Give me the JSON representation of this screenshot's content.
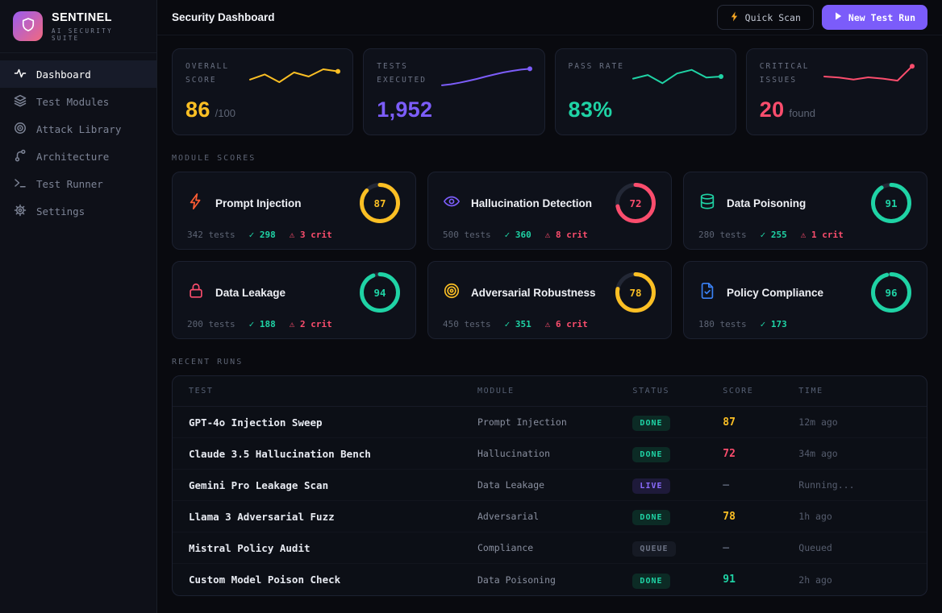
{
  "brand": {
    "name": "SENTINEL",
    "tagline": "AI SECURITY SUITE"
  },
  "sidebar": {
    "items": [
      {
        "label": "Dashboard",
        "active": true
      },
      {
        "label": "Test Modules",
        "active": false
      },
      {
        "label": "Attack Library",
        "active": false
      },
      {
        "label": "Architecture",
        "active": false
      },
      {
        "label": "Test Runner",
        "active": false
      },
      {
        "label": "Settings",
        "active": false
      }
    ]
  },
  "header": {
    "title": "Security Dashboard",
    "quick_scan": "Quick Scan",
    "new_test_run": "New Test Run"
  },
  "stats": [
    {
      "label": "OVERALL SCORE",
      "value": "86",
      "suffix": "/100",
      "color": "#fbbf24",
      "spark": [
        38,
        58,
        28,
        66,
        50,
        78,
        70
      ]
    },
    {
      "label": "TESTS EXECUTED",
      "value": "1,952",
      "suffix": "",
      "color": "#7c5dfa",
      "spark": [
        16,
        20,
        26,
        33,
        41,
        50,
        58,
        66,
        72,
        77,
        80
      ]
    },
    {
      "label": "PASS RATE",
      "value": "83%",
      "suffix": "",
      "color": "#1fd3a5",
      "spark": [
        42,
        56,
        24,
        62,
        76,
        46,
        50
      ]
    },
    {
      "label": "CRITICAL ISSUES",
      "value": "20",
      "suffix": "found",
      "color": "#fb4d6d",
      "spark": [
        50,
        46,
        38,
        47,
        42,
        34,
        90
      ]
    }
  ],
  "sections": {
    "modules": "MODULE SCORES",
    "recent": "RECENT RUNS"
  },
  "modules": [
    {
      "name": "Prompt Injection",
      "score": 87,
      "color": "#fbbf24",
      "icon_color": "#ff5c33",
      "tests": "342 tests",
      "passed": "✓ 298",
      "crit": "⚠ 3 crit"
    },
    {
      "name": "Hallucination Detection",
      "score": 72,
      "color": "#fb4d6d",
      "icon_color": "#7c5dfa",
      "tests": "500 tests",
      "passed": "✓ 360",
      "crit": "⚠ 8 crit"
    },
    {
      "name": "Data Poisoning",
      "score": 91,
      "color": "#1fd3a5",
      "icon_color": "#1fd3a5",
      "tests": "280 tests",
      "passed": "✓ 255",
      "crit": "⚠ 1 crit"
    },
    {
      "name": "Data Leakage",
      "score": 94,
      "color": "#1fd3a5",
      "icon_color": "#fb4d6d",
      "tests": "200 tests",
      "passed": "✓ 188",
      "crit": "⚠ 2 crit"
    },
    {
      "name": "Adversarial Robustness",
      "score": 78,
      "color": "#fbbf24",
      "icon_color": "#fbbf24",
      "tests": "450 tests",
      "passed": "✓ 351",
      "crit": "⚠ 6 crit"
    },
    {
      "name": "Policy Compliance",
      "score": 96,
      "color": "#1fd3a5",
      "icon_color": "#3b82f6",
      "tests": "180 tests",
      "passed": "✓ 173",
      "crit": ""
    }
  ],
  "table": {
    "columns": [
      "TEST",
      "MODULE",
      "STATUS",
      "SCORE",
      "TIME"
    ],
    "rows": [
      {
        "test": "GPT-4o Injection Sweep",
        "module": "Prompt Injection",
        "status": "DONE",
        "status_fg": "#1fd3a5",
        "status_bg": "#0c2b25",
        "score": "87",
        "score_color": "#fbbf24",
        "time": "12m ago"
      },
      {
        "test": "Claude 3.5 Hallucination Bench",
        "module": "Hallucination",
        "status": "DONE",
        "status_fg": "#1fd3a5",
        "status_bg": "#0c2b25",
        "score": "72",
        "score_color": "#fb4d6d",
        "time": "34m ago"
      },
      {
        "test": "Gemini Pro Leakage Scan",
        "module": "Data Leakage",
        "status": "LIVE",
        "status_fg": "#8b6cff",
        "status_bg": "#1e1a3a",
        "score": "—",
        "score_color": "#565d6e",
        "time": "Running..."
      },
      {
        "test": "Llama 3 Adversarial Fuzz",
        "module": "Adversarial",
        "status": "DONE",
        "status_fg": "#1fd3a5",
        "status_bg": "#0c2b25",
        "score": "78",
        "score_color": "#fbbf24",
        "time": "1h ago"
      },
      {
        "test": "Mistral Policy Audit",
        "module": "Compliance",
        "status": "QUEUE",
        "status_fg": "#6b7284",
        "status_bg": "#161a24",
        "score": "—",
        "score_color": "#565d6e",
        "time": "Queued"
      },
      {
        "test": "Custom Model Poison Check",
        "module": "Data Poisoning",
        "status": "DONE",
        "status_fg": "#1fd3a5",
        "status_bg": "#0c2b25",
        "score": "91",
        "score_color": "#1fd3a5",
        "time": "2h ago"
      }
    ]
  }
}
